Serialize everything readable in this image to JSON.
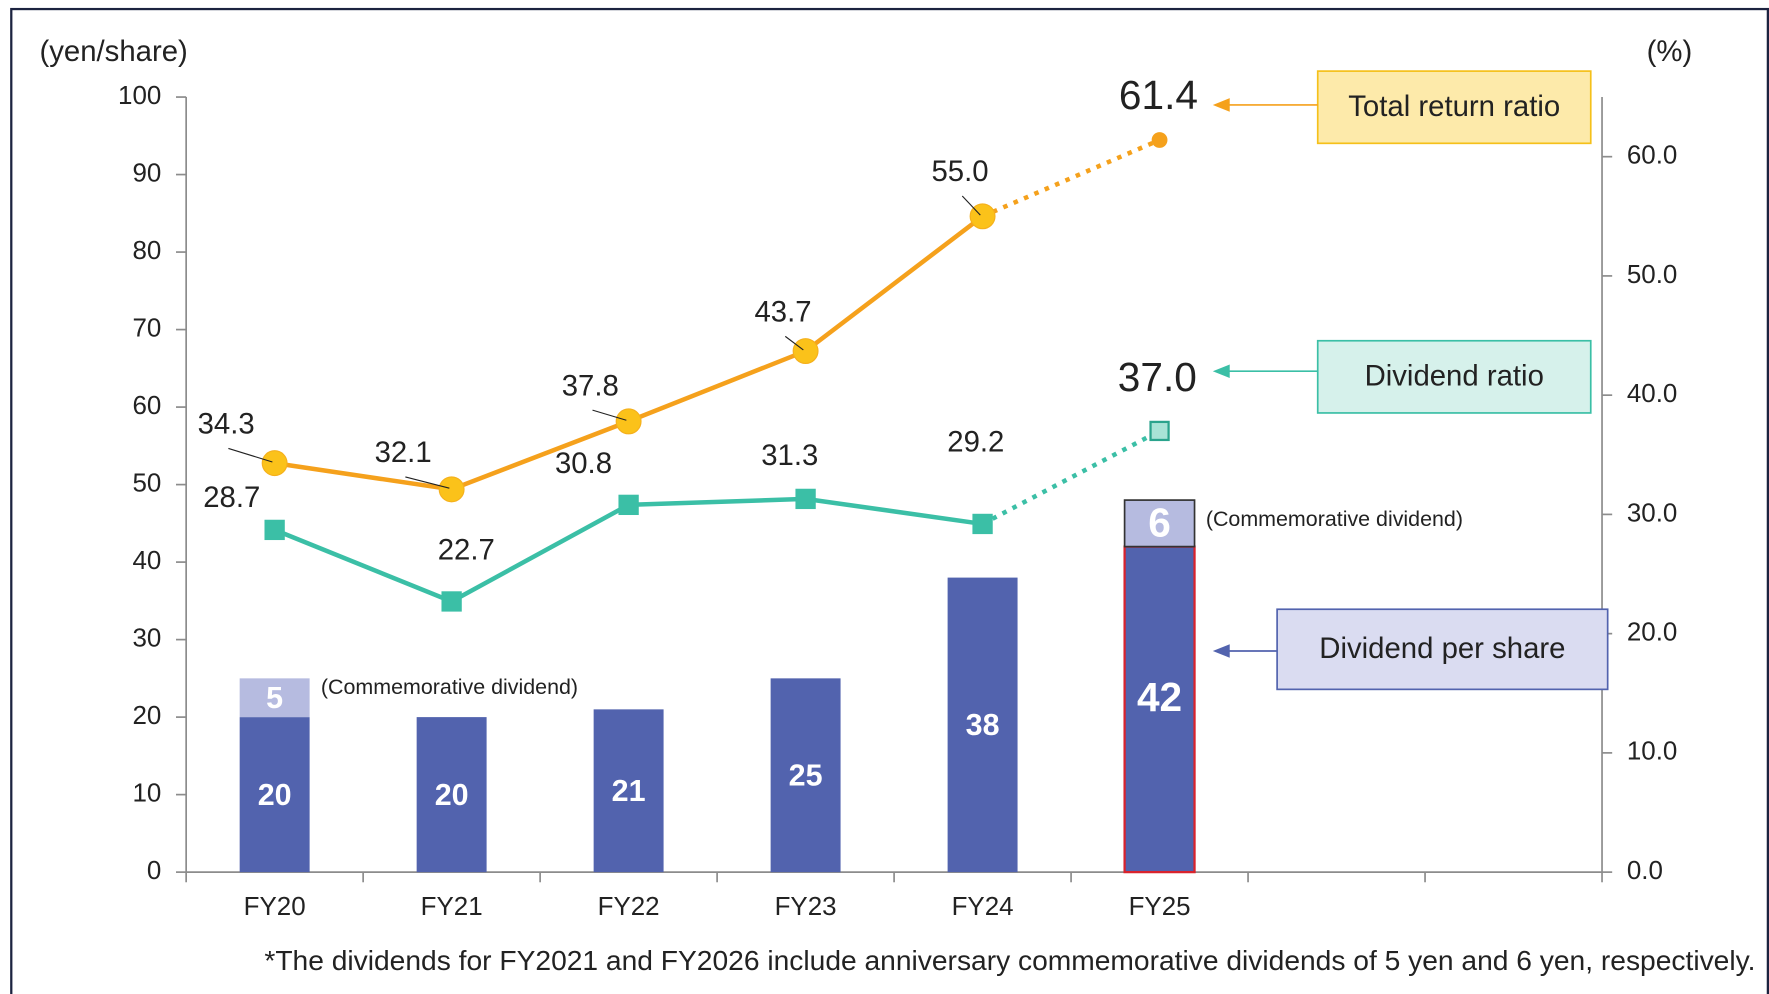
{
  "chart_data": {
    "type": "bar",
    "y_label": "(yen/share)",
    "y2_label": "(%)",
    "footnote": "*The dividends for FY2021 and FY2026 include anniversary commemorative dividends of 5 yen and 6 yen, respectively.",
    "categories": [
      "FY20",
      "FY21",
      "FY22",
      "FY23",
      "FY24",
      "FY25",
      null,
      null
    ],
    "ylim": [
      0,
      100
    ],
    "yticks": [
      0,
      10,
      20,
      30,
      40,
      50,
      60,
      70,
      80,
      90,
      100
    ],
    "y2lim": [
      0,
      65
    ],
    "y2ticks": [
      {
        "value": 0,
        "label": "0.0"
      },
      {
        "value": 10,
        "label": "10.0"
      },
      {
        "value": 20,
        "label": "20.0"
      },
      {
        "value": 30,
        "label": "30.0"
      },
      {
        "value": 40,
        "label": "40.0"
      },
      {
        "value": 50,
        "label": "50.0"
      },
      {
        "value": 60,
        "label": "60.0"
      }
    ],
    "series": [
      {
        "name": "Dividend per share",
        "type": "bar",
        "color": "#5263ae",
        "values": [
          20,
          20,
          21,
          25,
          38,
          42,
          null,
          null
        ],
        "highlight": {
          "category": "FY25",
          "color": "#d9232d"
        }
      },
      {
        "name": "(Commemorative dividend)",
        "type": "bar",
        "stacked": true,
        "color": "#b6bbe0",
        "values": [
          5,
          null,
          null,
          null,
          null,
          6,
          null,
          null
        ]
      },
      {
        "name": "Total return ratio",
        "type": "line",
        "axis": "y2",
        "color": "#f5a11c",
        "marker_color": "#fbc21a",
        "line_style_last": "dotted",
        "values": [
          34.3,
          32.1,
          37.8,
          43.7,
          55.0,
          61.4,
          null,
          null
        ],
        "value_labels": [
          "34.3",
          "32.1",
          "37.8",
          "43.7",
          "55.0",
          "61.4",
          null,
          null
        ]
      },
      {
        "name": "Dividend ratio",
        "type": "line",
        "axis": "y2",
        "color": "#3bbfa6",
        "marker_color": "#3bbfa6",
        "line_style_last": "dotted",
        "values": [
          28.7,
          22.7,
          30.8,
          31.3,
          29.2,
          37.0,
          null,
          null
        ],
        "value_labels": [
          "28.7",
          "22.7",
          "30.8",
          "31.3",
          "29.2",
          "37.0",
          null,
          null
        ]
      }
    ]
  }
}
